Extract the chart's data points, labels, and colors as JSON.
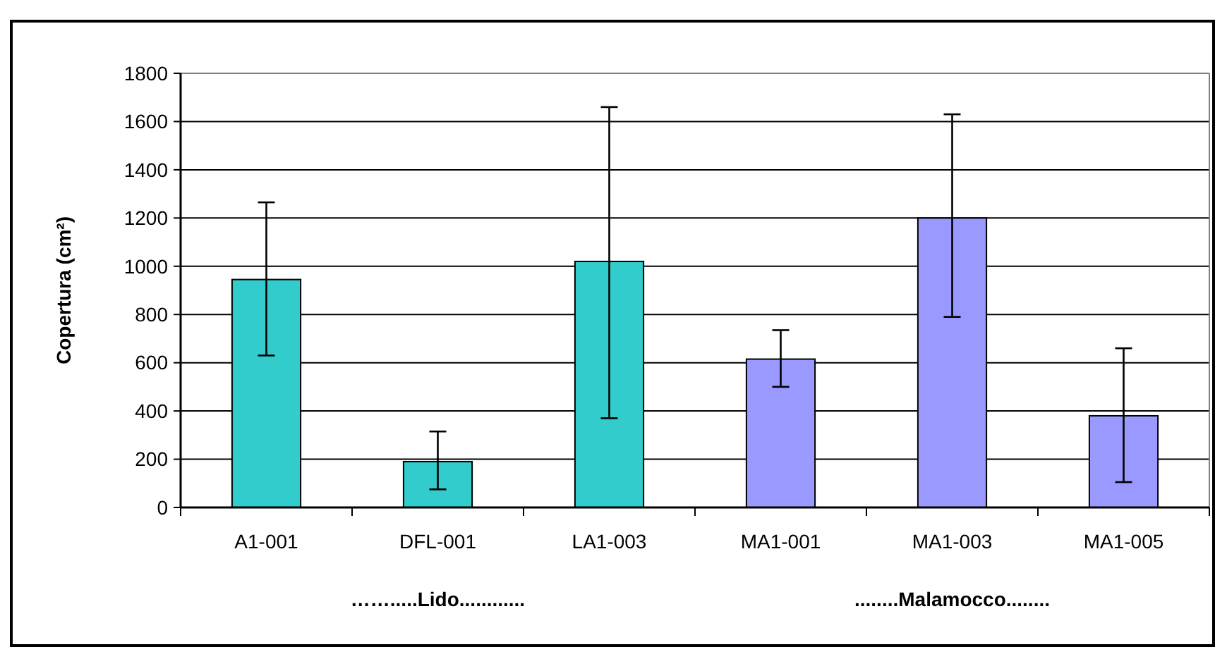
{
  "chart_data": {
    "type": "bar",
    "ylabel": "Copertura (cm²)",
    "categories": [
      "A1-001",
      "DFL-001",
      "LA1-003",
      "MA1-001",
      "MA1-003",
      "MA1-005"
    ],
    "values": [
      945,
      190,
      1020,
      615,
      1200,
      380
    ],
    "colors": [
      "#33cccc",
      "#33cccc",
      "#33cccc",
      "#9999ff",
      "#9999ff",
      "#9999ff"
    ],
    "errors": [
      [
        630,
        1265
      ],
      [
        75,
        315
      ],
      [
        370,
        1660
      ],
      [
        500,
        735
      ],
      [
        790,
        1630
      ],
      [
        105,
        660
      ]
    ],
    "ylim": [
      0,
      1800
    ],
    "yticks": [
      0,
      200,
      400,
      600,
      800,
      1000,
      1200,
      1400,
      1600,
      1800
    ],
    "grid": "y",
    "annotations": [
      "…….....Lido............",
      "........Malamocco........"
    ]
  }
}
